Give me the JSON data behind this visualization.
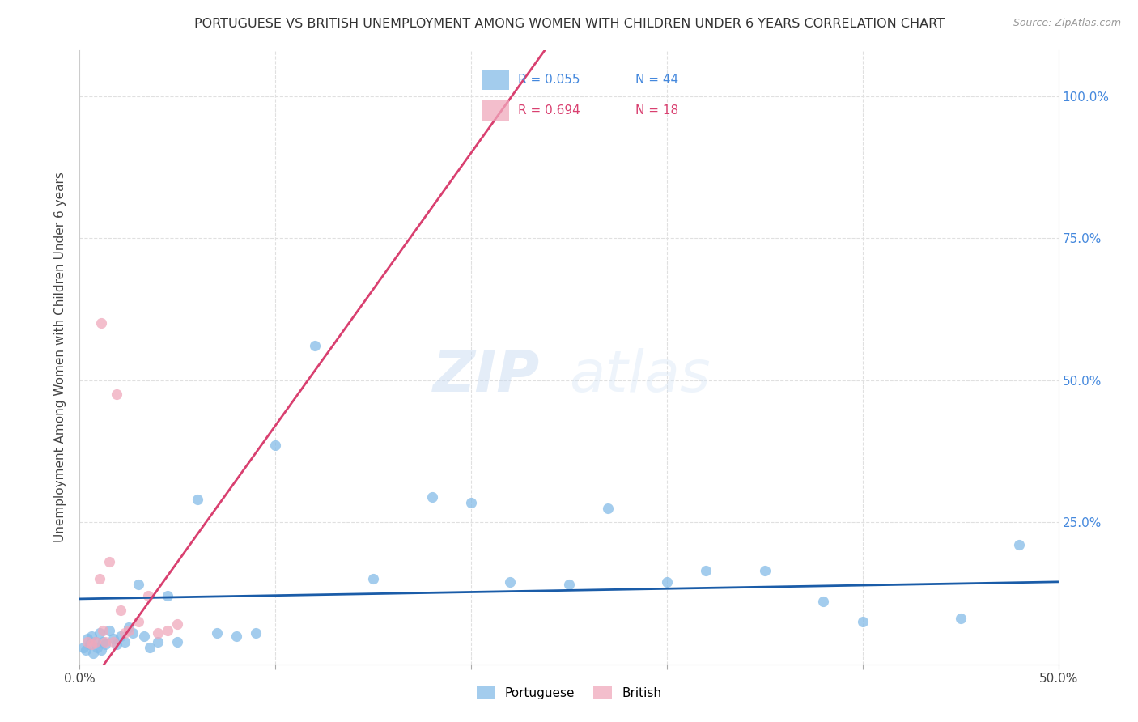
{
  "title": "PORTUGUESE VS BRITISH UNEMPLOYMENT AMONG WOMEN WITH CHILDREN UNDER 6 YEARS CORRELATION CHART",
  "source": "Source: ZipAtlas.com",
  "ylabel": "Unemployment Among Women with Children Under 6 years",
  "xlim": [
    0.0,
    0.5
  ],
  "ylim": [
    0.0,
    1.08
  ],
  "ytick_vals": [
    0.0,
    0.25,
    0.5,
    0.75,
    1.0
  ],
  "ytick_labels": [
    "",
    "25.0%",
    "50.0%",
    "75.0%",
    "100.0%"
  ],
  "xtick_vals": [
    0.0,
    0.1,
    0.2,
    0.3,
    0.4,
    0.5
  ],
  "xtick_labels": [
    "0.0%",
    "",
    "",
    "",
    "",
    "50.0%"
  ],
  "watermark_zip": "ZIP",
  "watermark_atlas": "atlas",
  "legend_blue_r": "R = 0.055",
  "legend_blue_n": "N = 44",
  "legend_pink_r": "R = 0.694",
  "legend_pink_n": "N = 18",
  "port_x": [
    0.002,
    0.003,
    0.004,
    0.005,
    0.006,
    0.007,
    0.008,
    0.009,
    0.01,
    0.011,
    0.012,
    0.013,
    0.015,
    0.017,
    0.019,
    0.021,
    0.023,
    0.025,
    0.027,
    0.03,
    0.033,
    0.036,
    0.04,
    0.045,
    0.05,
    0.06,
    0.07,
    0.08,
    0.09,
    0.1,
    0.12,
    0.15,
    0.18,
    0.2,
    0.22,
    0.25,
    0.27,
    0.3,
    0.32,
    0.35,
    0.38,
    0.4,
    0.45,
    0.48
  ],
  "port_y": [
    0.03,
    0.025,
    0.045,
    0.035,
    0.05,
    0.02,
    0.04,
    0.03,
    0.055,
    0.025,
    0.04,
    0.035,
    0.06,
    0.045,
    0.035,
    0.05,
    0.04,
    0.065,
    0.055,
    0.14,
    0.05,
    0.03,
    0.04,
    0.12,
    0.04,
    0.29,
    0.055,
    0.05,
    0.055,
    0.385,
    0.56,
    0.15,
    0.295,
    0.285,
    0.145,
    0.14,
    0.275,
    0.145,
    0.165,
    0.165,
    0.11,
    0.075,
    0.08,
    0.21
  ],
  "brit_x": [
    0.004,
    0.006,
    0.008,
    0.01,
    0.011,
    0.012,
    0.013,
    0.015,
    0.017,
    0.019,
    0.021,
    0.023,
    0.025,
    0.03,
    0.035,
    0.04,
    0.045,
    0.05
  ],
  "brit_y": [
    0.04,
    0.035,
    0.04,
    0.15,
    0.6,
    0.06,
    0.04,
    0.18,
    0.04,
    0.475,
    0.095,
    0.055,
    0.06,
    0.075,
    0.12,
    0.055,
    0.06,
    0.07
  ],
  "blue_dot_color": "#85bce8",
  "pink_dot_color": "#f0a8bc",
  "trend_blue_color": "#1a5ca8",
  "trend_pink_color": "#d94070",
  "trend_grey_color": "#cccccc",
  "background_color": "#ffffff",
  "grid_color": "#e0e0e0",
  "blue_line_y0": 0.115,
  "blue_line_y1": 0.145,
  "pink_line_intercept": -0.06,
  "pink_line_slope": 4.8
}
